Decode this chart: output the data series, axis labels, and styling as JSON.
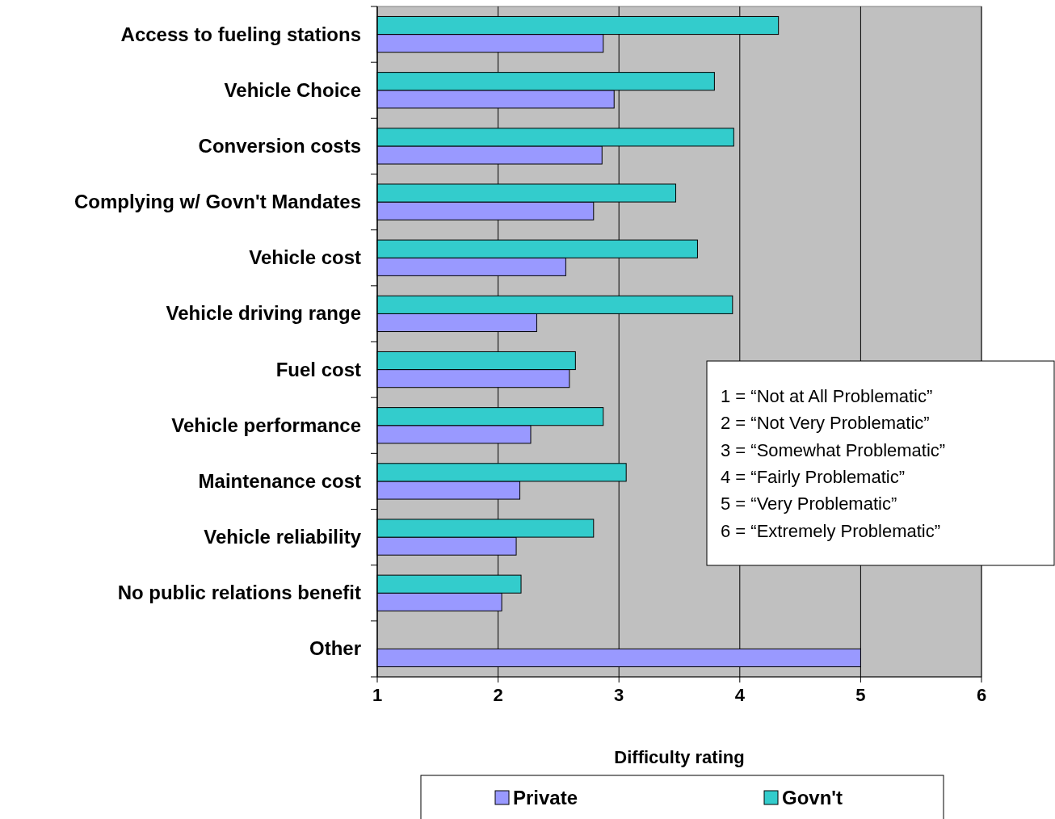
{
  "chart_data": {
    "type": "bar",
    "orientation": "horizontal",
    "xlabel": "Difficulty rating",
    "categories": [
      "Access to fueling stations",
      "Vehicle Choice",
      "Conversion costs",
      "Complying w/ Govn't Mandates",
      "Vehicle cost",
      "Vehicle driving range",
      "Fuel cost",
      "Vehicle performance",
      "Maintenance cost",
      "Vehicle reliability",
      "No public relations benefit",
      "Other"
    ],
    "series": [
      {
        "name": "Private",
        "color": "#9999ff",
        "values": [
          2.87,
          2.96,
          2.86,
          2.79,
          2.56,
          2.32,
          2.59,
          2.27,
          2.18,
          2.15,
          2.03,
          5.0
        ]
      },
      {
        "name": "Govn't",
        "color": "#33cccc",
        "values": [
          4.32,
          3.79,
          3.95,
          3.47,
          3.65,
          3.94,
          2.64,
          2.87,
          3.06,
          2.79,
          2.19,
          null
        ]
      }
    ],
    "xlim": [
      1,
      6
    ],
    "xticks": [
      1,
      2,
      3,
      4,
      5,
      6
    ],
    "grid": "x",
    "legend": "bottom",
    "annotations": [
      "1 = “Not at All Problematic”",
      "2 = “Not Very Problematic”",
      "3 = “Somewhat Problematic”",
      "4 = “Fairly Problematic”",
      "5 = “Very Problematic”",
      "6 = “Extremely Problematic”"
    ]
  }
}
